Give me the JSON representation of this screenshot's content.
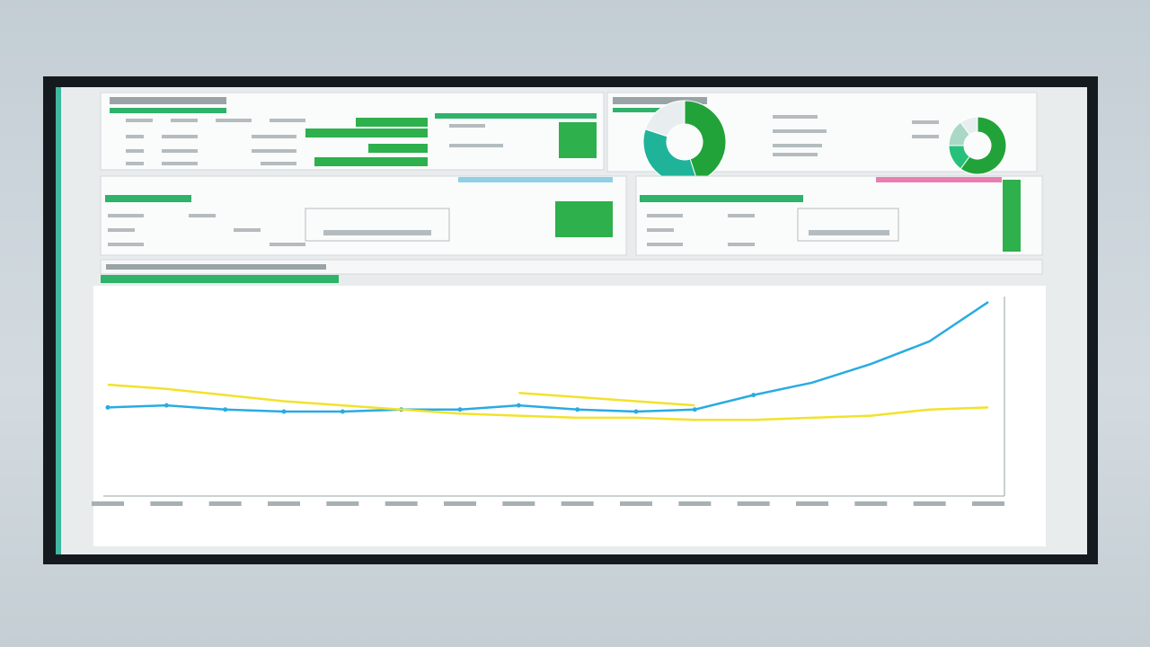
{
  "chart_data": [
    {
      "type": "line",
      "categories": [
        null,
        null,
        null,
        null,
        null,
        null,
        null,
        null,
        null,
        null,
        null,
        null,
        null,
        null,
        null,
        null
      ],
      "series": [
        {
          "color": "#29abe2",
          "values": [
            42,
            43,
            41,
            40,
            40,
            41,
            41,
            43,
            41,
            40,
            41,
            48,
            54,
            63,
            74,
            93
          ]
        },
        {
          "color": "#f2e22c",
          "values": [
            53,
            51,
            48,
            45,
            43,
            41,
            39,
            38,
            37,
            37,
            36,
            36,
            37,
            38,
            41,
            42
          ]
        },
        {
          "color": "#f2e22c",
          "values": [
            null,
            null,
            null,
            null,
            null,
            null,
            null,
            49,
            47,
            45,
            43,
            null,
            null,
            null,
            null,
            null
          ]
        }
      ],
      "ylim": [
        0,
        100
      ]
    },
    {
      "type": "pie",
      "values": [
        45,
        35,
        20
      ],
      "colors": [
        "#22a33a",
        "#1fb39a",
        "#e8eef0"
      ]
    },
    {
      "type": "pie",
      "values": [
        60,
        15,
        15,
        10
      ],
      "colors": [
        "#22a33a",
        "#27c07a",
        "#a9d8c6",
        "#e8eef0"
      ]
    }
  ]
}
